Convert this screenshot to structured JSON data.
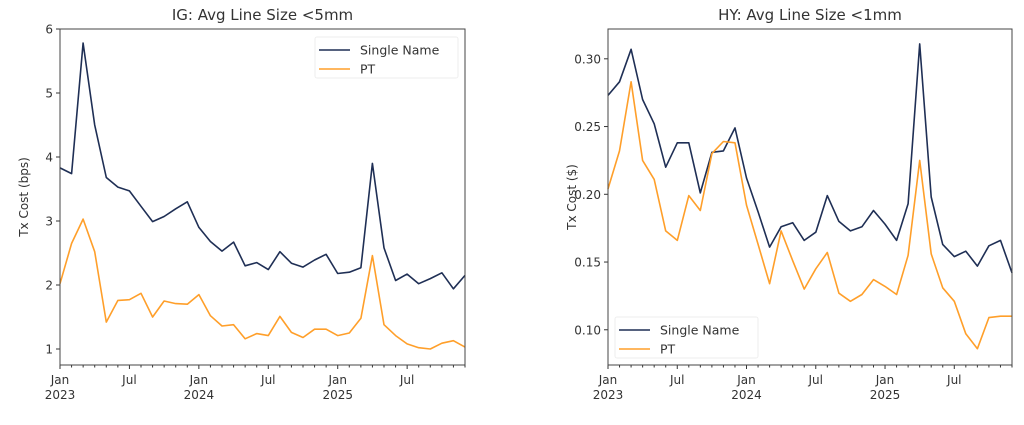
{
  "chart_data": [
    {
      "type": "line",
      "title": "IG: Avg Line Size <5mm",
      "xlabel": "",
      "ylabel": "Tx Cost (bps)",
      "ylim": [
        0.75,
        6.0
      ],
      "yticks": [
        "1",
        "2",
        "3",
        "4",
        "5",
        "6"
      ],
      "ytick_values": [
        1,
        2,
        3,
        4,
        5,
        6
      ],
      "xticks": [
        {
          "month": 0,
          "label": "Jan",
          "year": "2023"
        },
        {
          "month": 6,
          "label": "Jul",
          "year": ""
        },
        {
          "month": 12,
          "label": "Jan",
          "year": "2024"
        },
        {
          "month": 18,
          "label": "Jul",
          "year": ""
        },
        {
          "month": 24,
          "label": "Jan",
          "year": "2025"
        },
        {
          "month": 30,
          "label": "Jul",
          "year": ""
        }
      ],
      "x_start": "2023-01",
      "n_months": 36,
      "legend_placement": "top-right",
      "grid": false,
      "series": [
        {
          "name": "Single Name",
          "color": "#1f2f55",
          "values": [
            3.83,
            3.74,
            5.78,
            4.5,
            3.68,
            3.53,
            3.47,
            3.23,
            2.99,
            3.07,
            3.19,
            3.3,
            2.9,
            2.68,
            2.53,
            2.67,
            2.3,
            2.35,
            2.24,
            2.52,
            2.34,
            2.28,
            2.39,
            2.48,
            2.18,
            2.2,
            2.27,
            3.9,
            2.58,
            2.07,
            2.17,
            2.02,
            2.1,
            2.19,
            1.94,
            2.15
          ]
        },
        {
          "name": "PT",
          "color": "#ff9f2a",
          "values": [
            2.02,
            2.65,
            3.03,
            2.52,
            1.42,
            1.76,
            1.77,
            1.87,
            1.5,
            1.75,
            1.71,
            1.7,
            1.85,
            1.52,
            1.36,
            1.38,
            1.16,
            1.24,
            1.21,
            1.51,
            1.26,
            1.18,
            1.31,
            1.31,
            1.21,
            1.25,
            1.48,
            2.46,
            1.38,
            1.21,
            1.08,
            1.02,
            1.0,
            1.09,
            1.13,
            1.03
          ]
        }
      ]
    },
    {
      "type": "line",
      "title": "HY: Avg Line Size <1mm",
      "xlabel": "",
      "ylabel": "Tx Cost ($)",
      "ylim": [
        0.074,
        0.322
      ],
      "yticks": [
        "0.10",
        "0.15",
        "0.20",
        "0.25",
        "0.30"
      ],
      "ytick_values": [
        0.1,
        0.15,
        0.2,
        0.25,
        0.3
      ],
      "xticks": [
        {
          "month": 0,
          "label": "Jan",
          "year": "2023"
        },
        {
          "month": 6,
          "label": "Jul",
          "year": ""
        },
        {
          "month": 12,
          "label": "Jan",
          "year": "2024"
        },
        {
          "month": 18,
          "label": "Jul",
          "year": ""
        },
        {
          "month": 24,
          "label": "Jan",
          "year": "2025"
        },
        {
          "month": 30,
          "label": "Jul",
          "year": ""
        }
      ],
      "x_start": "2023-01",
      "n_months": 36,
      "legend_placement": "bottom-left",
      "grid": false,
      "series": [
        {
          "name": "Single Name",
          "color": "#1f2f55",
          "values": [
            0.273,
            0.283,
            0.307,
            0.27,
            0.252,
            0.22,
            0.238,
            0.238,
            0.201,
            0.231,
            0.232,
            0.249,
            0.212,
            0.187,
            0.161,
            0.176,
            0.179,
            0.166,
            0.172,
            0.199,
            0.18,
            0.173,
            0.176,
            0.188,
            0.178,
            0.166,
            0.193,
            0.311,
            0.198,
            0.163,
            0.154,
            0.158,
            0.147,
            0.162,
            0.166,
            0.142
          ]
        },
        {
          "name": "PT",
          "color": "#ff9f2a",
          "values": [
            0.204,
            0.232,
            0.283,
            0.225,
            0.211,
            0.173,
            0.166,
            0.199,
            0.188,
            0.23,
            0.239,
            0.238,
            0.192,
            0.163,
            0.134,
            0.173,
            0.151,
            0.13,
            0.145,
            0.157,
            0.127,
            0.121,
            0.126,
            0.137,
            0.132,
            0.126,
            0.155,
            0.225,
            0.156,
            0.131,
            0.121,
            0.097,
            0.086,
            0.109,
            0.11,
            0.11
          ]
        }
      ]
    }
  ]
}
